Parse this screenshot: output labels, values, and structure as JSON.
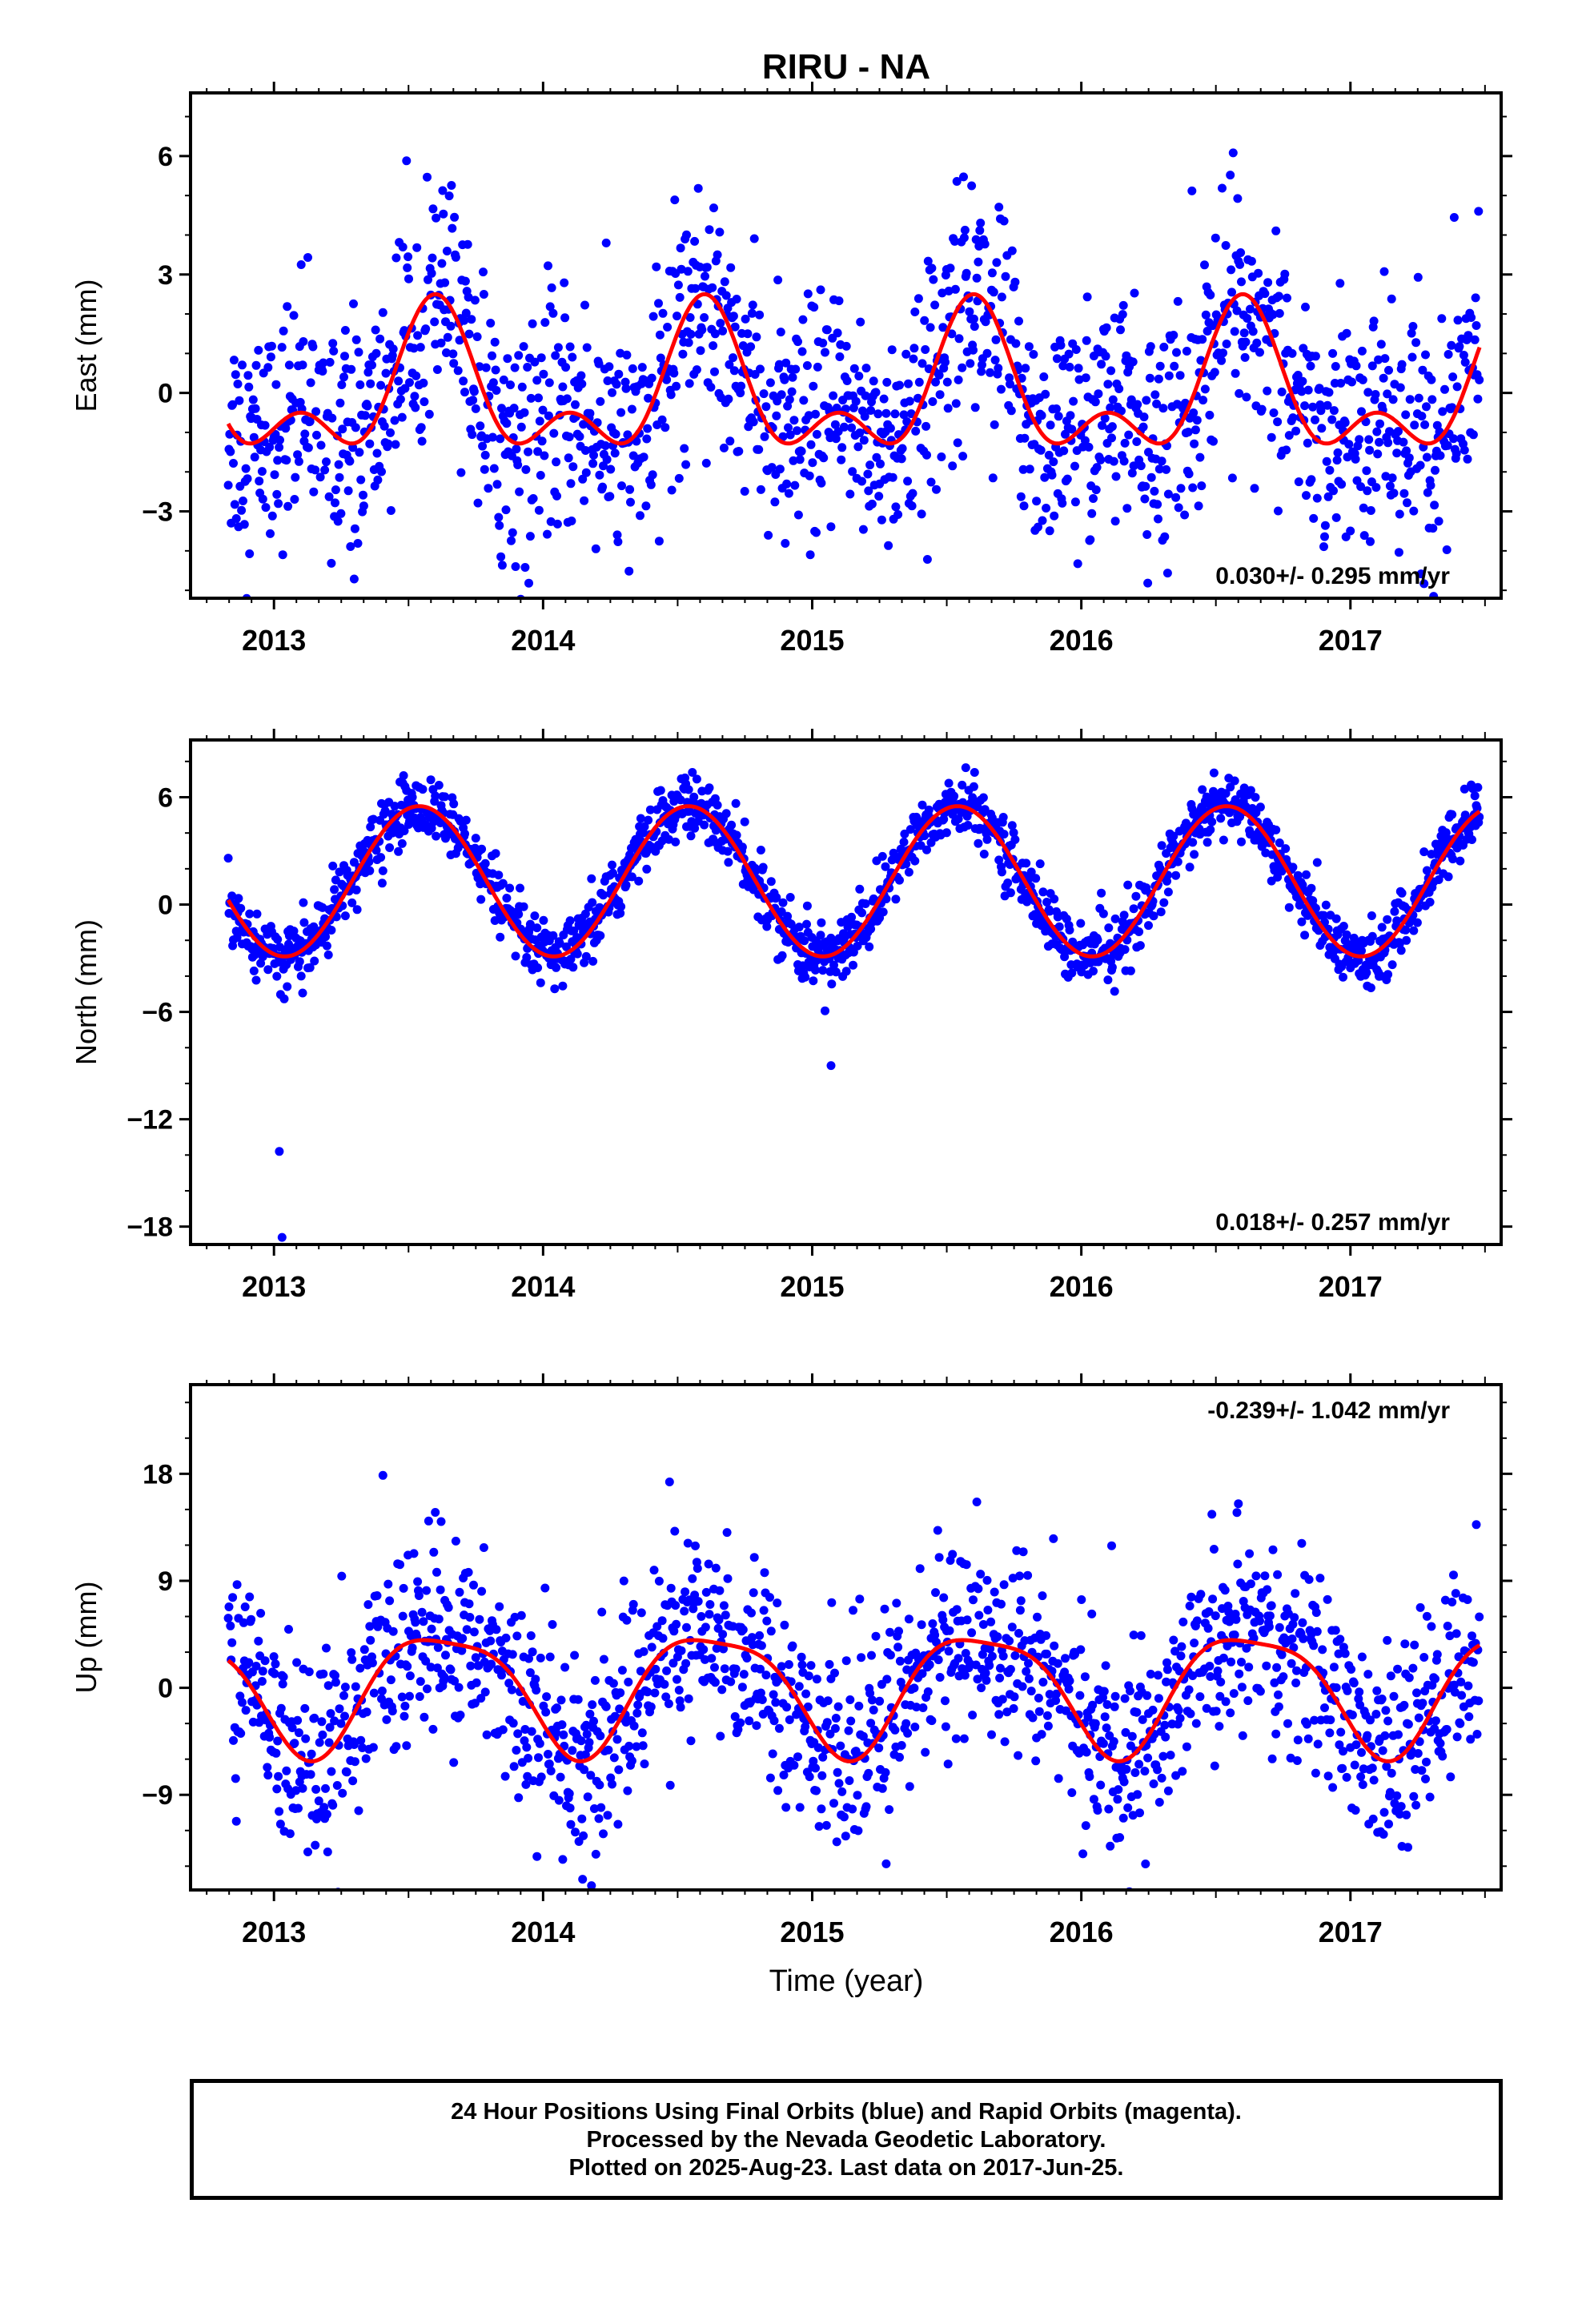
{
  "title": "RIRU - NA",
  "colors": {
    "points": "#0000ff",
    "fit": "#ff0000",
    "frame": "#000000"
  },
  "xlabel": "Time (year)",
  "caption": [
    "24 Hour Positions Using Final Orbits (blue) and Rapid Orbits (magenta).",
    "Processed by the Nevada Geodetic Laboratory.",
    "Plotted on 2025-Aug-23. Last data on 2017-Jun-25."
  ],
  "chart_data": [
    {
      "type": "scatter",
      "name": "east",
      "ylabel": "East (mm)",
      "xlim": [
        2012.69,
        2017.56
      ],
      "ylim": [
        -5.2,
        7.6
      ],
      "yticks": [
        -3,
        0,
        3,
        6
      ],
      "xticks": [
        2013,
        2014,
        2015,
        2016,
        2017
      ],
      "rate_text": "0.030+/- 0.295 mm/yr",
      "rate_position": "bottom-right",
      "grid": false,
      "data_range": [
        2012.83,
        2017.48
      ],
      "fit_model": {
        "offset": 0.0,
        "annual_amp": 1.5,
        "annual_peak": 0.6,
        "semiannual_amp": 1.0,
        "semiannual_peak": 0.6,
        "scatter_sd": 1.5
      }
    },
    {
      "type": "scatter",
      "name": "north",
      "ylabel": "North (mm)",
      "xlim": [
        2012.69,
        2017.56
      ],
      "ylim": [
        -19.0,
        9.2
      ],
      "yticks": [
        -18,
        -12,
        -6,
        0,
        6
      ],
      "xticks": [
        2013,
        2014,
        2015,
        2016,
        2017
      ],
      "rate_text": "0.018+/- 0.257 mm/yr",
      "rate_position": "bottom-right",
      "grid": false,
      "data_range": [
        2012.83,
        2017.48
      ],
      "fit_model": {
        "offset": 1.3,
        "annual_amp": 4.2,
        "annual_peak": 0.54,
        "semiannual_amp": 0.0,
        "semiannual_peak": 0.0,
        "scatter_sd": 0.9
      },
      "outliers": [
        {
          "x": 2013.02,
          "y": -13.8
        },
        {
          "x": 2013.03,
          "y": -18.6
        },
        {
          "x": 2015.07,
          "y": -9.0
        }
      ]
    },
    {
      "type": "scatter",
      "name": "up",
      "ylabel": "Up (mm)",
      "xlim": [
        2012.69,
        2017.56
      ],
      "ylim": [
        -17.0,
        25.5
      ],
      "yticks": [
        -9,
        0,
        9,
        18
      ],
      "xticks": [
        2013,
        2014,
        2015,
        2016,
        2017
      ],
      "rate_text": "-0.239+/- 1.042 mm/yr",
      "rate_position": "top-right",
      "grid": false,
      "data_range": [
        2012.83,
        2017.48
      ],
      "fit_model": {
        "offset": 0.0,
        "annual_amp": 5.0,
        "annual_peak": 0.63,
        "semiannual_amp": 1.2,
        "semiannual_peak": 0.9,
        "scatter_sd": 4.2
      }
    }
  ]
}
